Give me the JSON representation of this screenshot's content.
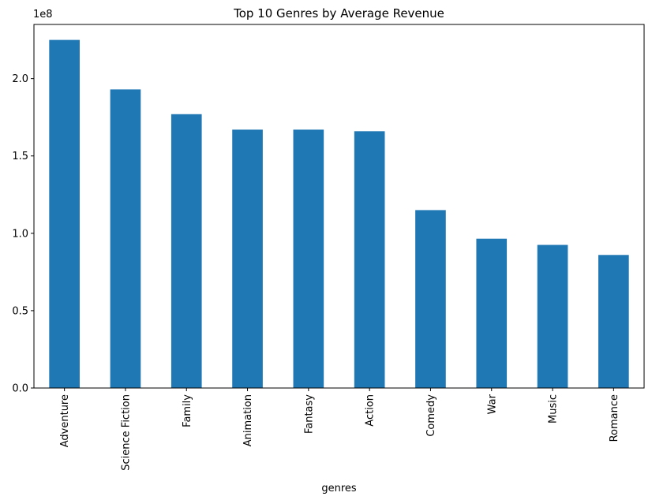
{
  "chart_data": {
    "type": "bar",
    "title": "Top 10 Genres by Average Revenue",
    "xlabel": "genres",
    "ylabel": "",
    "offset_label": "1e8",
    "categories": [
      "Adventure",
      "Science Fiction",
      "Family",
      "Animation",
      "Fantasy",
      "Action",
      "Comedy",
      "War",
      "Music",
      "Romance"
    ],
    "values": [
      225000000,
      193000000,
      177000000,
      167000000,
      167000000,
      166000000,
      115000000,
      96500000,
      92500000,
      86000000
    ],
    "ylim": [
      0,
      235000000
    ],
    "yticks": [
      0,
      50000000,
      100000000,
      150000000,
      200000000
    ],
    "ytick_labels": [
      "0.0",
      "0.5",
      "1.0",
      "1.5",
      "2.0"
    ],
    "bar_color": "#1f77b4",
    "grid": false,
    "legend": "none"
  }
}
